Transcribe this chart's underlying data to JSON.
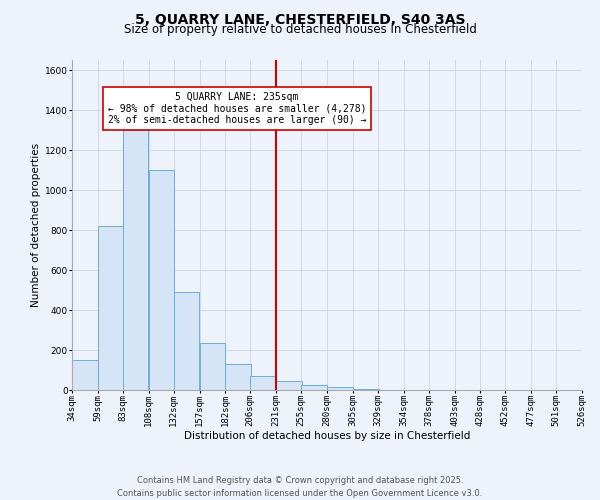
{
  "title": "5, QUARRY LANE, CHESTERFIELD, S40 3AS",
  "subtitle": "Size of property relative to detached houses in Chesterfield",
  "xlabel": "Distribution of detached houses by size in Chesterfield",
  "ylabel": "Number of detached properties",
  "bins": [
    34,
    59,
    83,
    108,
    132,
    157,
    182,
    206,
    231,
    255,
    280,
    305,
    329,
    354,
    378,
    403,
    428,
    452,
    477,
    501,
    526
  ],
  "counts": [
    150,
    820,
    1300,
    1100,
    490,
    235,
    130,
    70,
    45,
    25,
    15,
    5,
    2,
    1,
    0,
    0,
    0,
    0,
    0,
    0
  ],
  "bar_facecolor": "#d6e4f7",
  "bar_edgecolor": "#6baed6",
  "vline_x": 231,
  "vline_color": "#cc0000",
  "annotation_title": "5 QUARRY LANE: 235sqm",
  "annotation_line1": "← 98% of detached houses are smaller (4,278)",
  "annotation_line2": "2% of semi-detached houses are larger (90) →",
  "annotation_box_edgecolor": "#cc0000",
  "ylim": [
    0,
    1650
  ],
  "yticks": [
    0,
    200,
    400,
    600,
    800,
    1000,
    1200,
    1400,
    1600
  ],
  "background_color": "#eef2fa",
  "footer1": "Contains HM Land Registry data © Crown copyright and database right 2025.",
  "footer2": "Contains public sector information licensed under the Open Government Licence v3.0.",
  "title_fontsize": 10,
  "subtitle_fontsize": 8.5,
  "axis_label_fontsize": 7.5,
  "tick_fontsize": 6.5,
  "annotation_fontsize": 7,
  "footer_fontsize": 6
}
